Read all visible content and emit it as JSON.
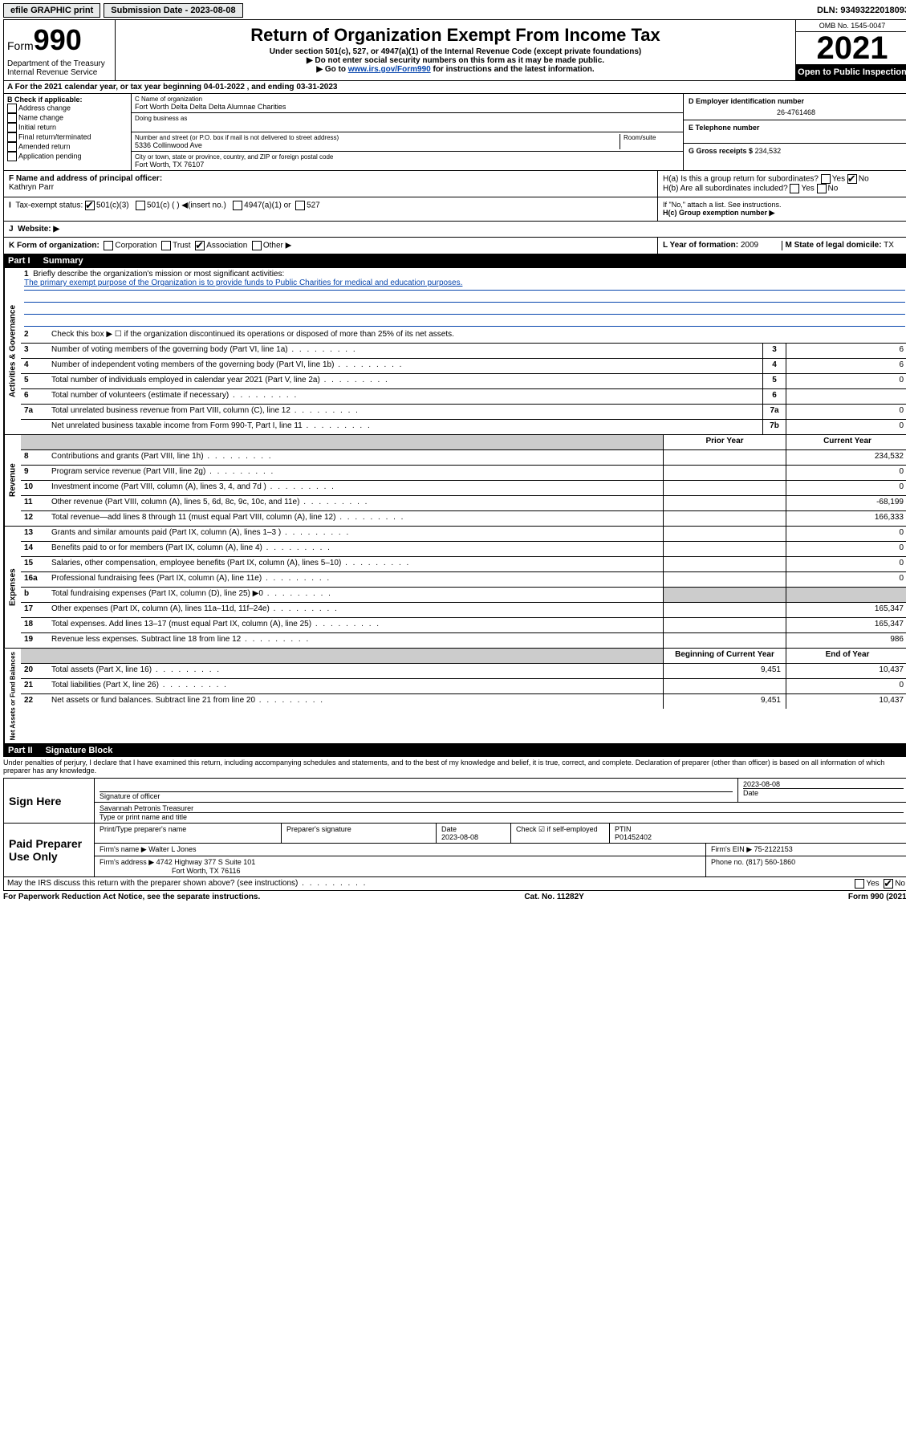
{
  "topbar": {
    "efile": "efile GRAPHIC print",
    "submission": "Submission Date - 2023-08-08",
    "dln": "DLN: 93493222018093"
  },
  "header": {
    "form_prefix": "Form",
    "form_num": "990",
    "title": "Return of Organization Exempt From Income Tax",
    "subtitle": "Under section 501(c), 527, or 4947(a)(1) of the Internal Revenue Code (except private foundations)",
    "note1": "▶ Do not enter social security numbers on this form as it may be made public.",
    "note2_pre": "▶ Go to ",
    "note2_link": "www.irs.gov/Form990",
    "note2_post": " for instructions and the latest information.",
    "dept": "Department of the Treasury",
    "irs": "Internal Revenue Service",
    "omb": "OMB No. 1545-0047",
    "year": "2021",
    "open": "Open to Public Inspection"
  },
  "row_a": "A For the 2021 calendar year, or tax year beginning 04-01-2022   , and ending 03-31-2023",
  "box_b": {
    "title": "B Check if applicable:",
    "opts": [
      "Address change",
      "Name change",
      "Initial return",
      "Final return/terminated",
      "Amended return",
      "Application pending"
    ]
  },
  "box_c": {
    "name_lbl": "C Name of organization",
    "name": "Fort Worth Delta Delta Delta Alumnae Charities",
    "dba_lbl": "Doing business as",
    "addr_lbl": "Number and street (or P.O. box if mail is not delivered to street address)",
    "room_lbl": "Room/suite",
    "addr": "5336 Collinwood Ave",
    "city_lbl": "City or town, state or province, country, and ZIP or foreign postal code",
    "city": "Fort Worth, TX  76107"
  },
  "box_d": {
    "lbl": "D Employer identification number",
    "val": "26-4761468"
  },
  "box_e": {
    "lbl": "E Telephone number"
  },
  "box_g": {
    "lbl": "G Gross receipts $",
    "val": "234,532"
  },
  "box_f": {
    "lbl": "F Name and address of principal officer:",
    "val": "Kathryn Parr"
  },
  "box_h": {
    "a": "H(a)  Is this a group return for subordinates?",
    "b": "H(b)  Are all subordinates included?",
    "b_note": "If \"No,\" attach a list. See instructions.",
    "c": "H(c)  Group exemption number ▶",
    "yes": "Yes",
    "no": "No"
  },
  "box_i": {
    "lbl": "Tax-exempt status:",
    "opts": [
      "501(c)(3)",
      "501(c) (  ) ◀(insert no.)",
      "4947(a)(1) or",
      "527"
    ]
  },
  "box_j": {
    "lbl": "Website: ▶"
  },
  "box_k": {
    "lbl": "K Form of organization:",
    "opts": [
      "Corporation",
      "Trust",
      "Association",
      "Other ▶"
    ]
  },
  "box_l": {
    "lbl": "L Year of formation:",
    "val": "2009"
  },
  "box_m": {
    "lbl": "M State of legal domicile:",
    "val": "TX"
  },
  "part1": {
    "label": "Part I",
    "title": "Summary"
  },
  "summary": {
    "line1_lbl": "Briefly describe the organization's mission or most significant activities:",
    "line1_txt": "The primary exempt purpose of the Organization is to provide funds to Public Charities for medical and education purposes.",
    "line2": "Check this box ▶ ☐  if the organization discontinued its operations or disposed of more than 25% of its net assets.",
    "lines_ag": [
      {
        "n": "3",
        "lbl": "Number of voting members of the governing body (Part VI, line 1a)",
        "k": "3",
        "v": "6"
      },
      {
        "n": "4",
        "lbl": "Number of independent voting members of the governing body (Part VI, line 1b)",
        "k": "4",
        "v": "6"
      },
      {
        "n": "5",
        "lbl": "Total number of individuals employed in calendar year 2021 (Part V, line 2a)",
        "k": "5",
        "v": "0"
      },
      {
        "n": "6",
        "lbl": "Total number of volunteers (estimate if necessary)",
        "k": "6",
        "v": ""
      },
      {
        "n": "7a",
        "lbl": "Total unrelated business revenue from Part VIII, column (C), line 12",
        "k": "7a",
        "v": "0"
      },
      {
        "n": "",
        "lbl": "Net unrelated business taxable income from Form 990-T, Part I, line 11",
        "k": "7b",
        "v": "0"
      }
    ],
    "col_prior": "Prior Year",
    "col_current": "Current Year",
    "rev": [
      {
        "n": "8",
        "lbl": "Contributions and grants (Part VIII, line 1h)",
        "p": "",
        "c": "234,532"
      },
      {
        "n": "9",
        "lbl": "Program service revenue (Part VIII, line 2g)",
        "p": "",
        "c": "0"
      },
      {
        "n": "10",
        "lbl": "Investment income (Part VIII, column (A), lines 3, 4, and 7d )",
        "p": "",
        "c": "0"
      },
      {
        "n": "11",
        "lbl": "Other revenue (Part VIII, column (A), lines 5, 6d, 8c, 9c, 10c, and 11e)",
        "p": "",
        "c": "-68,199"
      },
      {
        "n": "12",
        "lbl": "Total revenue—add lines 8 through 11 (must equal Part VIII, column (A), line 12)",
        "p": "",
        "c": "166,333"
      }
    ],
    "exp": [
      {
        "n": "13",
        "lbl": "Grants and similar amounts paid (Part IX, column (A), lines 1–3 )",
        "p": "",
        "c": "0"
      },
      {
        "n": "14",
        "lbl": "Benefits paid to or for members (Part IX, column (A), line 4)",
        "p": "",
        "c": "0"
      },
      {
        "n": "15",
        "lbl": "Salaries, other compensation, employee benefits (Part IX, column (A), lines 5–10)",
        "p": "",
        "c": "0"
      },
      {
        "n": "16a",
        "lbl": "Professional fundraising fees (Part IX, column (A), line 11e)",
        "p": "",
        "c": "0"
      },
      {
        "n": "b",
        "lbl": "Total fundraising expenses (Part IX, column (D), line 25) ▶0",
        "p": "shaded",
        "c": "shaded"
      },
      {
        "n": "17",
        "lbl": "Other expenses (Part IX, column (A), lines 11a–11d, 11f–24e)",
        "p": "",
        "c": "165,347"
      },
      {
        "n": "18",
        "lbl": "Total expenses. Add lines 13–17 (must equal Part IX, column (A), line 25)",
        "p": "",
        "c": "165,347"
      },
      {
        "n": "19",
        "lbl": "Revenue less expenses. Subtract line 18 from line 12",
        "p": "",
        "c": "986"
      }
    ],
    "col_begin": "Beginning of Current Year",
    "col_end": "End of Year",
    "net": [
      {
        "n": "20",
        "lbl": "Total assets (Part X, line 16)",
        "p": "9,451",
        "c": "10,437"
      },
      {
        "n": "21",
        "lbl": "Total liabilities (Part X, line 26)",
        "p": "",
        "c": "0"
      },
      {
        "n": "22",
        "lbl": "Net assets or fund balances. Subtract line 21 from line 20",
        "p": "9,451",
        "c": "10,437"
      }
    ]
  },
  "vert": {
    "ag": "Activities & Governance",
    "rev": "Revenue",
    "exp": "Expenses",
    "net": "Net Assets or Fund Balances"
  },
  "part2": {
    "label": "Part II",
    "title": "Signature Block"
  },
  "sig": {
    "penalty": "Under penalties of perjury, I declare that I have examined this return, including accompanying schedules and statements, and to the best of my knowledge and belief, it is true, correct, and complete. Declaration of preparer (other than officer) is based on all information of which preparer has any knowledge.",
    "sign_here": "Sign Here",
    "sig_officer": "Signature of officer",
    "date_lbl": "Date",
    "date": "2023-08-08",
    "name_title": "Savannah Petronis Treasurer",
    "type_name": "Type or print name and title",
    "paid": "Paid Preparer Use Only",
    "prep_name_lbl": "Print/Type preparer's name",
    "prep_sig_lbl": "Preparer's signature",
    "prep_date": "2023-08-08",
    "check_self": "Check ☑ if self-employed",
    "ptin_lbl": "PTIN",
    "ptin": "P01452402",
    "firm_name_lbl": "Firm's name   ▶",
    "firm_name": "Walter L Jones",
    "firm_ein_lbl": "Firm's EIN ▶",
    "firm_ein": "75-2122153",
    "firm_addr_lbl": "Firm's address ▶",
    "firm_addr": "4742 Highway 377 S Suite 101",
    "firm_city": "Fort Worth, TX  76116",
    "phone_lbl": "Phone no.",
    "phone": "(817) 560-1860",
    "may_discuss": "May the IRS discuss this return with the preparer shown above? (see instructions)"
  },
  "footer": {
    "left": "For Paperwork Reduction Act Notice, see the separate instructions.",
    "mid": "Cat. No. 11282Y",
    "right": "Form 990 (2021)"
  }
}
